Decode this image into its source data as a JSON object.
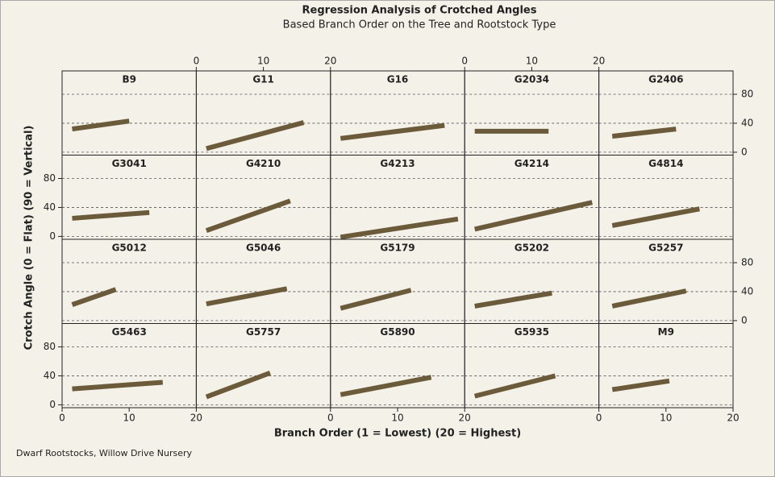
{
  "chart_data": {
    "type": "line",
    "title": "Regression Analysis of Crotched Angles",
    "subtitle": "Based Branch Order on the Tree and Rootstock Type",
    "x_label": "Branch Order  (1 = Lowest)  (20 = Highest)",
    "y_label": "Crotch Angle (0 = Flat)  (90 = Vertical)",
    "note": "Dwarf Rootstocks, Willow Drive Nursery",
    "xlim": [
      0,
      20
    ],
    "xticks": [
      0,
      10,
      20
    ],
    "ylim": [
      -4,
      90
    ],
    "yticks": [
      0,
      40,
      80
    ],
    "grid": true,
    "color": "#6b5b3a",
    "panels": [
      {
        "name": "B9",
        "x": [
          1.5,
          10
        ],
        "values": [
          32,
          43
        ]
      },
      {
        "name": "G11",
        "x": [
          1.5,
          16
        ],
        "values": [
          5,
          41
        ]
      },
      {
        "name": "G16",
        "x": [
          1.5,
          17
        ],
        "values": [
          19,
          37
        ]
      },
      {
        "name": "G2034",
        "x": [
          1.5,
          12.5
        ],
        "values": [
          29,
          29
        ]
      },
      {
        "name": "G2406",
        "x": [
          2,
          11.5
        ],
        "values": [
          22,
          32
        ]
      },
      {
        "name": "G3041",
        "x": [
          1.5,
          13
        ],
        "values": [
          25,
          33
        ]
      },
      {
        "name": "G4210",
        "x": [
          1.5,
          14
        ],
        "values": [
          8,
          49
        ]
      },
      {
        "name": "G4213",
        "x": [
          1.5,
          19
        ],
        "values": [
          -1,
          24
        ]
      },
      {
        "name": "G4214",
        "x": [
          1.5,
          19
        ],
        "values": [
          10,
          47
        ]
      },
      {
        "name": "G4814",
        "x": [
          2,
          15
        ],
        "values": [
          15,
          38
        ]
      },
      {
        "name": "G5012",
        "x": [
          1.5,
          8
        ],
        "values": [
          22,
          43
        ]
      },
      {
        "name": "G5046",
        "x": [
          1.5,
          13.5
        ],
        "values": [
          23,
          44
        ]
      },
      {
        "name": "G5179",
        "x": [
          1.5,
          12
        ],
        "values": [
          17,
          42
        ]
      },
      {
        "name": "G5202",
        "x": [
          1.5,
          13
        ],
        "values": [
          20,
          38
        ]
      },
      {
        "name": "G5257",
        "x": [
          2,
          13
        ],
        "values": [
          20,
          41
        ]
      },
      {
        "name": "G5463",
        "x": [
          1.5,
          15
        ],
        "values": [
          22,
          31
        ]
      },
      {
        "name": "G5757",
        "x": [
          1.5,
          11
        ],
        "values": [
          11,
          44
        ]
      },
      {
        "name": "G5890",
        "x": [
          1.5,
          15
        ],
        "values": [
          14,
          38
        ]
      },
      {
        "name": "G5935",
        "x": [
          1.5,
          13.5
        ],
        "values": [
          12,
          40
        ]
      },
      {
        "name": "M9",
        "x": [
          2,
          10.5
        ],
        "values": [
          21,
          33
        ]
      }
    ]
  }
}
